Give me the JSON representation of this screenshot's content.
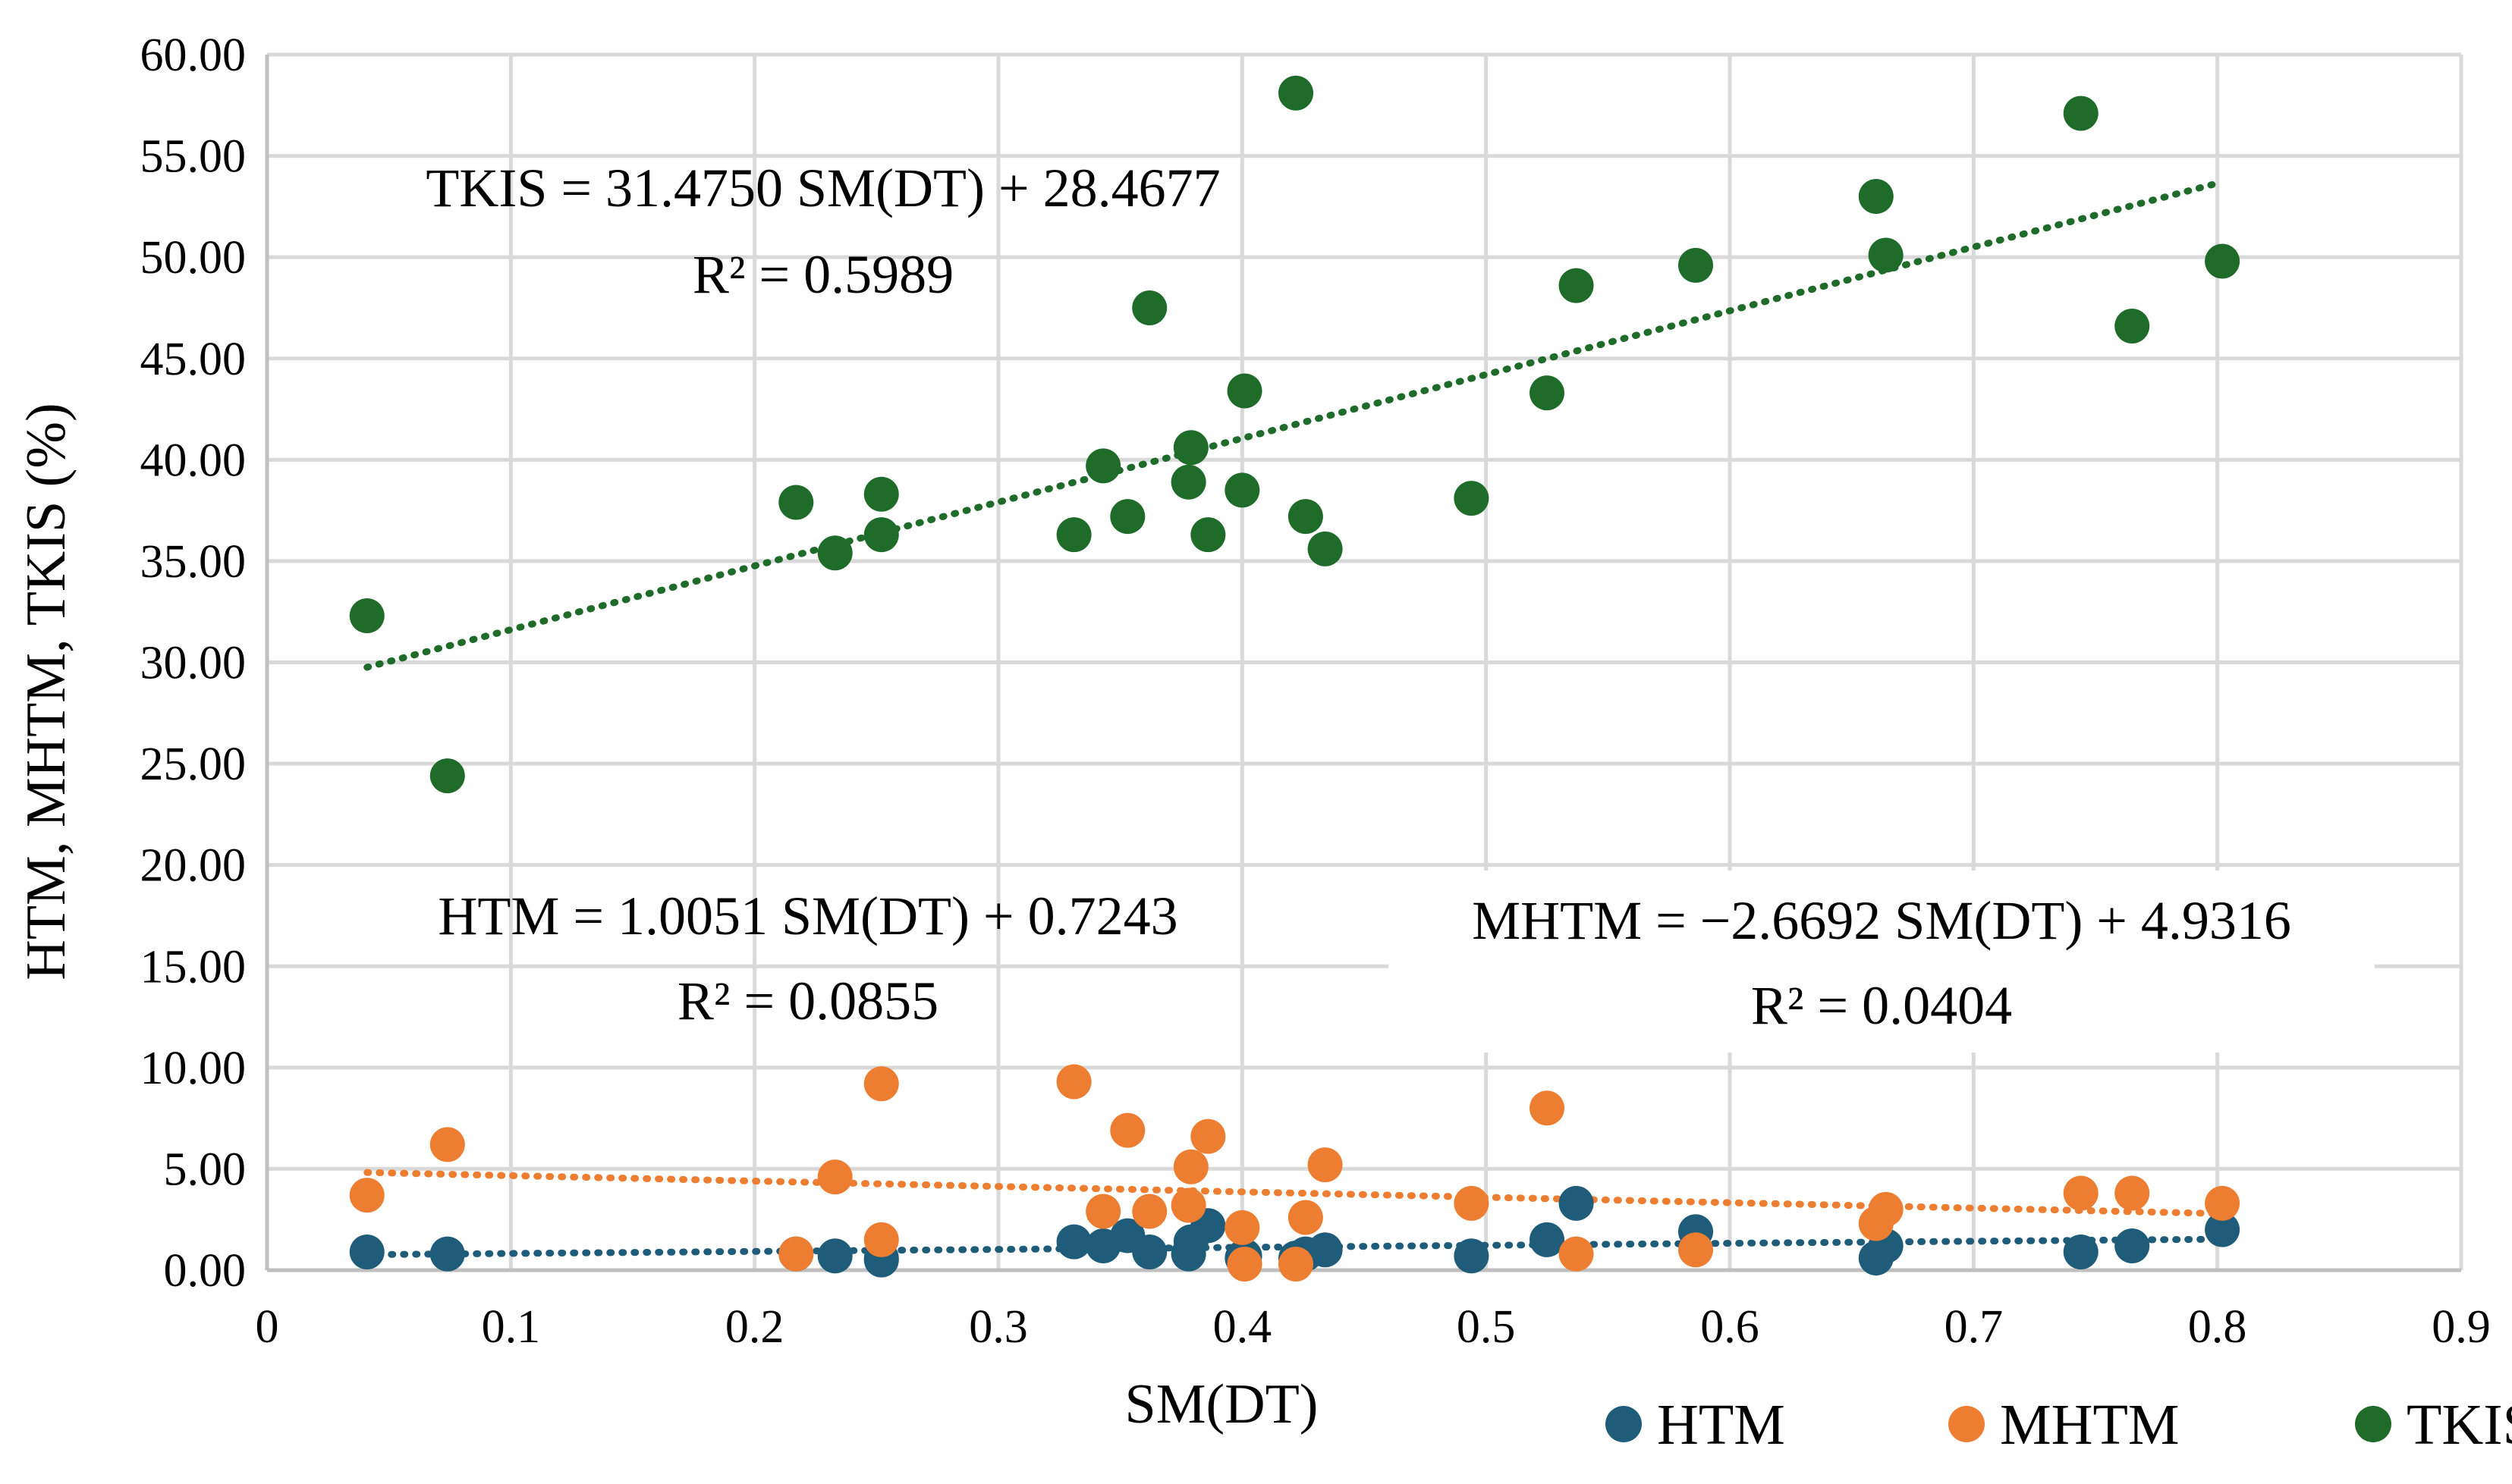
{
  "chart_data": {
    "type": "scatter",
    "title": "",
    "xlabel": "SM(DT)",
    "ylabel": "HTM, MHTM, TKIS (%)",
    "xlim": [
      0,
      0.9
    ],
    "ylim": [
      0,
      60
    ],
    "x_ticks": [
      "0",
      "0.1",
      "0.2",
      "0.3",
      "0.4",
      "0.5",
      "0.6",
      "0.7",
      "0.8",
      "0.9"
    ],
    "y_ticks": [
      "0.00",
      "5.00",
      "10.00",
      "15.00",
      "20.00",
      "25.00",
      "30.00",
      "35.00",
      "40.00",
      "45.00",
      "50.00",
      "55.00",
      "60.00"
    ],
    "grid": true,
    "legend_position": "bottom-right",
    "x": [
      0.041,
      0.074,
      0.217,
      0.233,
      0.252,
      0.252,
      0.331,
      0.343,
      0.353,
      0.362,
      0.378,
      0.379,
      0.386,
      0.4,
      0.401,
      0.422,
      0.426,
      0.434,
      0.494,
      0.525,
      0.537,
      0.586,
      0.66,
      0.664,
      0.744,
      0.765,
      0.802
    ],
    "series": [
      {
        "name": "HTM",
        "color": "#1f5c7a",
        "values": [
          0.9,
          0.8,
          0.8,
          0.7,
          0.5,
          0.6,
          1.4,
          1.2,
          1.7,
          0.9,
          0.8,
          1.4,
          2.2,
          0.6,
          0.7,
          0.6,
          0.8,
          1.0,
          0.7,
          1.5,
          3.3,
          1.9,
          0.6,
          1.2,
          0.9,
          1.2,
          2.0
        ]
      },
      {
        "name": "MHTM",
        "color": "#ed7d31",
        "values": [
          3.7,
          6.2,
          0.8,
          4.6,
          1.5,
          9.2,
          9.3,
          2.9,
          6.9,
          2.9,
          3.2,
          5.1,
          6.6,
          2.1,
          0.3,
          0.3,
          2.6,
          5.2,
          3.3,
          8.0,
          0.8,
          1.0,
          2.3,
          3.0,
          3.8,
          3.8,
          3.3
        ]
      },
      {
        "name": "TKIS",
        "color": "#1e6b2a",
        "values": [
          32.3,
          24.4,
          37.9,
          35.4,
          36.3,
          38.3,
          36.3,
          39.7,
          37.2,
          47.5,
          38.9,
          40.6,
          36.3,
          38.5,
          43.4,
          58.1,
          37.2,
          35.6,
          38.1,
          43.3,
          48.6,
          49.6,
          53.0,
          50.1,
          57.1,
          46.6,
          49.8
        ]
      }
    ],
    "trendlines": [
      {
        "series": "HTM",
        "slope": 1.0051,
        "intercept": 0.7243,
        "x_range": [
          0.041,
          0.802
        ]
      },
      {
        "series": "MHTM",
        "slope": -2.6692,
        "intercept": 4.9316,
        "x_range": [
          0.041,
          0.802
        ]
      },
      {
        "series": "TKIS",
        "slope": 31.475,
        "intercept": 28.4677,
        "x_range": [
          0.041,
          0.802
        ]
      }
    ],
    "annotations": {
      "tkis_equation": "TKIS = 31.4750 SM(DT) + 28.4677",
      "tkis_r2": "R² = 0.5989",
      "htm_equation": "HTM = 1.0051 SM(DT) + 0.7243",
      "htm_r2": "R² = 0.0855",
      "mhtm_equation": "MHTM = −2.6692 SM(DT) + 4.9316",
      "mhtm_r2": "R² = 0.0404"
    }
  }
}
